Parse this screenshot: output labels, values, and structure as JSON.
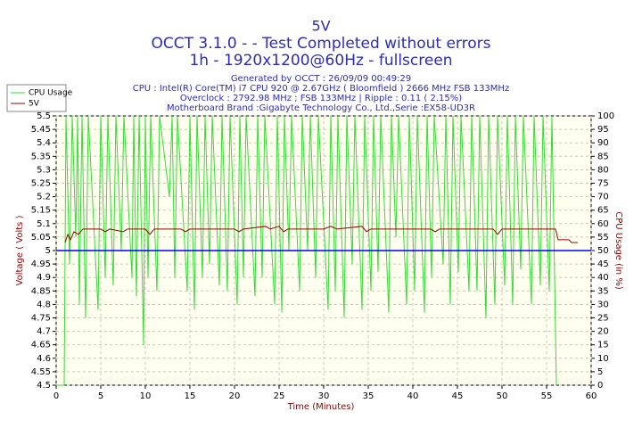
{
  "chart_data": {
    "type": "line",
    "title": "5V",
    "subtitle": "OCCT 3.1.0 -  - Test Completed without errors",
    "subtitle2": "1h - 1920x1200@60Hz - fullscreen",
    "info": [
      "Generated by OCCT : 26/09/09 00:49:29",
      "CPU : Intel(R) Core(TM) i7 CPU 920 @ 2.67GHz ( Bloomfield ) 2666 MHz FSB 133MHz",
      "Overclock : 2792.98 MHz ; FSB 133MHz | Ripple : 0.11 ( 2.15%)",
      "Motherboard Brand :Gigabyte Technology Co., Ltd.,Serie :EX58-UD3R"
    ],
    "xlabel": "Time (Minutes)",
    "ylabel": "Voltage ( Volts )",
    "y2label": "CPU Usage (in %)",
    "xlim": [
      0,
      60
    ],
    "xticks": [
      0,
      5,
      10,
      15,
      20,
      25,
      30,
      35,
      40,
      45,
      50,
      55,
      60
    ],
    "ylim": [
      4.5,
      5.5
    ],
    "yticks": [
      4.5,
      4.55,
      4.6,
      4.65,
      4.7,
      4.75,
      4.8,
      4.85,
      4.9,
      4.95,
      5,
      5.05,
      5.1,
      5.15,
      5.2,
      5.25,
      5.3,
      5.35,
      5.4,
      5.45,
      5.5
    ],
    "y2lim": [
      0,
      100
    ],
    "y2ticks": [
      0,
      5,
      10,
      15,
      20,
      25,
      30,
      35,
      40,
      45,
      50,
      55,
      60,
      65,
      70,
      75,
      80,
      85,
      90,
      95,
      100
    ],
    "grid": true,
    "legend": "top-left",
    "hlines": [
      {
        "value": 5,
        "color": "#0000ff"
      }
    ],
    "series": [
      {
        "name": "CPU Usage",
        "color": "#33dd33",
        "axis": "y2",
        "x": [
          0,
          0.9,
          1.1,
          1.5,
          1.8,
          2.2,
          2.4,
          2.6,
          2.9,
          3.3,
          3.6,
          4.7,
          5.0,
          5.5,
          5.8,
          6.4,
          6.7,
          7.3,
          7.6,
          8.5,
          8.7,
          9.0,
          9.3,
          9.8,
          10.0,
          10.3,
          10.6,
          11.3,
          11.6,
          12.7,
          13.0,
          13.3,
          13.6,
          14.7,
          15.0,
          15.5,
          15.8,
          16.4,
          16.7,
          17.2,
          17.5,
          18.3,
          18.6,
          19.2,
          19.5,
          20.3,
          20.6,
          21.0,
          21.3,
          22.3,
          22.6,
          23.1,
          23.4,
          24.5,
          24.8,
          25.3,
          25.6,
          26.1,
          26.4,
          27.3,
          27.6,
          28.2,
          28.5,
          29.1,
          29.4,
          30.5,
          30.8,
          31.3,
          31.6,
          32.3,
          32.6,
          33.2,
          33.5,
          34.3,
          34.6,
          35.3,
          35.6,
          36.1,
          36.4,
          37.3,
          37.6,
          38.1,
          38.4,
          39.3,
          39.6,
          40.2,
          40.5,
          41.3,
          41.6,
          42.1,
          42.4,
          43.4,
          43.7,
          44.2,
          44.5,
          45.1,
          45.4,
          46.3,
          46.6,
          47.2,
          47.5,
          48.2,
          48.5,
          49.2,
          49.5,
          50.3,
          50.6,
          51.2,
          51.5,
          52.1,
          52.4,
          53.3,
          53.6,
          54.3,
          54.6,
          55.3,
          55.6,
          56.1
        ],
        "values": [
          0,
          0,
          100,
          45,
          100,
          55,
          100,
          30,
          100,
          25,
          100,
          28,
          100,
          40,
          100,
          37,
          100,
          50,
          100,
          40,
          100,
          33,
          100,
          15,
          100,
          40,
          100,
          35,
          100,
          70,
          100,
          40,
          100,
          35,
          100,
          28,
          100,
          40,
          100,
          45,
          100,
          37,
          100,
          35,
          100,
          30,
          100,
          40,
          100,
          33,
          100,
          40,
          100,
          30,
          100,
          27,
          100,
          50,
          100,
          35,
          100,
          50,
          100,
          40,
          100,
          28,
          100,
          35,
          100,
          25,
          100,
          45,
          100,
          28,
          100,
          35,
          100,
          42,
          100,
          27,
          100,
          55,
          100,
          30,
          100,
          35,
          100,
          27,
          100,
          40,
          100,
          45,
          100,
          30,
          100,
          42,
          100,
          35,
          100,
          35,
          100,
          25,
          100,
          30,
          100,
          37,
          100,
          30,
          100,
          43,
          100,
          30,
          100,
          37,
          100,
          35,
          100,
          0
        ]
      },
      {
        "name": "5V",
        "color": "#990000",
        "x": [
          1,
          1.3,
          1.6,
          2,
          2.5,
          3,
          5,
          5.5,
          6,
          7.5,
          8,
          10,
          10.5,
          11,
          14,
          14.5,
          15,
          20,
          20.5,
          21,
          23.5,
          24,
          25,
          25.5,
          26,
          30,
          30.8,
          31.5,
          34.3,
          34.8,
          35.3,
          42,
          42.5,
          43,
          49,
          49.5,
          50,
          56,
          56.3,
          57.5,
          57.8,
          58.5
        ],
        "values": [
          5.03,
          5.06,
          5.04,
          5.07,
          5.06,
          5.08,
          5.08,
          5.07,
          5.08,
          5.07,
          5.08,
          5.08,
          5.06,
          5.08,
          5.08,
          5.07,
          5.08,
          5.08,
          5.07,
          5.08,
          5.09,
          5.08,
          5.09,
          5.07,
          5.08,
          5.08,
          5.09,
          5.08,
          5.09,
          5.07,
          5.08,
          5.08,
          5.07,
          5.08,
          5.08,
          5.06,
          5.08,
          5.08,
          5.04,
          5.04,
          5.03,
          5.03
        ]
      }
    ]
  }
}
